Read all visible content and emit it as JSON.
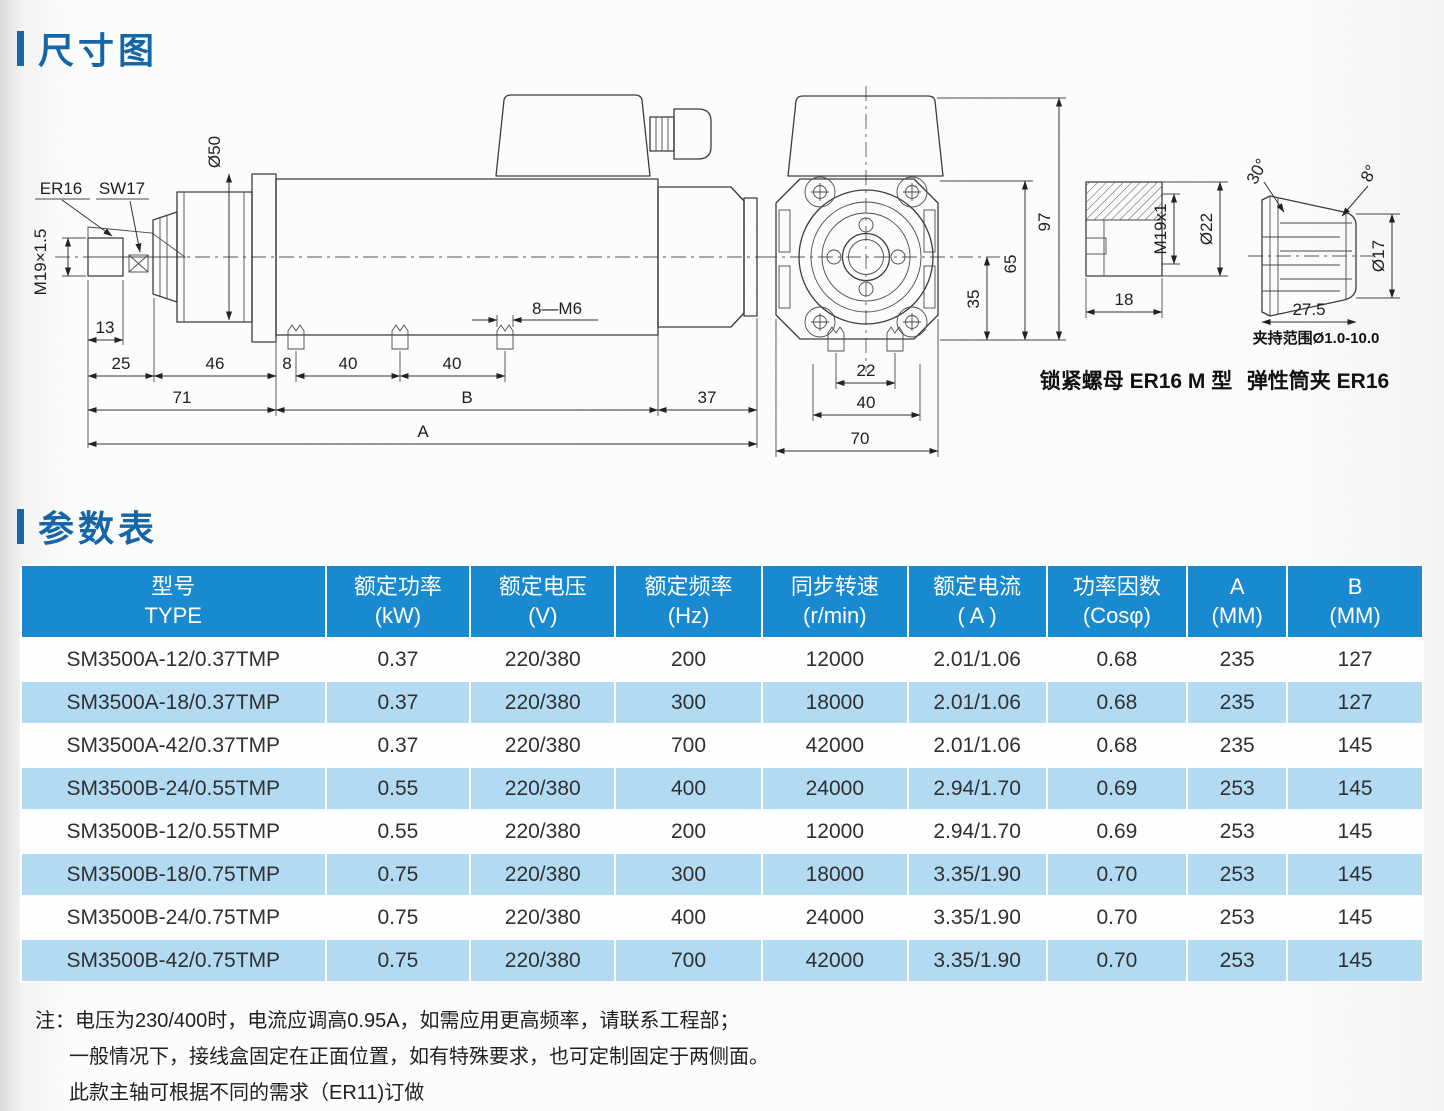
{
  "page": {
    "section1_title": "尺寸图",
    "section2_title": "参数表"
  },
  "colors": {
    "accent": "#1565a9",
    "table_header_bg": "#1a8ad0",
    "table_row_alt": "#b2daf2"
  },
  "drawing": {
    "side": {
      "er16": "ER16",
      "sw17": "SW17",
      "m19": "M19×1.5",
      "d50": "Ø50",
      "m6": "8—M6",
      "d13": "13",
      "d25": "25",
      "d46": "46",
      "d8": "8",
      "d40a": "40",
      "d40b": "40",
      "d71": "71",
      "dB": "B",
      "d37": "37",
      "dA": "A"
    },
    "front": {
      "d97": "97",
      "d65": "65",
      "d35": "35",
      "d22": "22",
      "d40": "40",
      "d70": "70"
    },
    "nut": {
      "m19x1": "M19x1",
      "d22": "Ø22",
      "d18": "18",
      "caption": "锁紧螺母 ER16 M 型"
    },
    "collet": {
      "a30": "30°",
      "a8": "8°",
      "d17": "Ø17",
      "d275": "27.5",
      "range": "夹持范围Ø1.0-10.0",
      "caption": "弹性筒夹 ER16"
    }
  },
  "table": {
    "headers": [
      {
        "l1": "型号",
        "l2": "TYPE"
      },
      {
        "l1": "额定功率",
        "l2": "(kW)"
      },
      {
        "l1": "额定电压",
        "l2": "(V)"
      },
      {
        "l1": "额定频率",
        "l2": "(Hz)"
      },
      {
        "l1": "同步转速",
        "l2": "(r/min)"
      },
      {
        "l1": "额定电流",
        "l2": "( A )"
      },
      {
        "l1": "功率因数",
        "l2": "(Cosφ)"
      },
      {
        "l1": "A",
        "l2": "(MM)"
      },
      {
        "l1": "B",
        "l2": "(MM)"
      }
    ],
    "rows": [
      [
        "SM3500A-12/0.37TMP",
        "0.37",
        "220/380",
        "200",
        "12000",
        "2.01/1.06",
        "0.68",
        "235",
        "127"
      ],
      [
        "SM3500A-18/0.37TMP",
        "0.37",
        "220/380",
        "300",
        "18000",
        "2.01/1.06",
        "0.68",
        "235",
        "127"
      ],
      [
        "SM3500A-42/0.37TMP",
        "0.37",
        "220/380",
        "700",
        "42000",
        "2.01/1.06",
        "0.68",
        "235",
        "145"
      ],
      [
        "SM3500B-24/0.55TMP",
        "0.55",
        "220/380",
        "400",
        "24000",
        "2.94/1.70",
        "0.69",
        "253",
        "145"
      ],
      [
        "SM3500B-12/0.55TMP",
        "0.55",
        "220/380",
        "200",
        "12000",
        "2.94/1.70",
        "0.69",
        "253",
        "145"
      ],
      [
        "SM3500B-18/0.75TMP",
        "0.75",
        "220/380",
        "300",
        "18000",
        "3.35/1.90",
        "0.70",
        "253",
        "145"
      ],
      [
        "SM3500B-24/0.75TMP",
        "0.75",
        "220/380",
        "400",
        "24000",
        "3.35/1.90",
        "0.70",
        "253",
        "145"
      ],
      [
        "SM3500B-42/0.75TMP",
        "0.75",
        "220/380",
        "700",
        "42000",
        "3.35/1.90",
        "0.70",
        "253",
        "145"
      ]
    ]
  },
  "notes": {
    "lines": [
      "注：电压为230/400时，电流应调高0.95A，如需应用更高频率，请联系工程部；",
      "一般情况下，接线盒固定在正面位置，如有特殊要求，也可定制固定于两侧面。",
      "此款主轴可根据不同的需求（ER11)订做"
    ]
  }
}
